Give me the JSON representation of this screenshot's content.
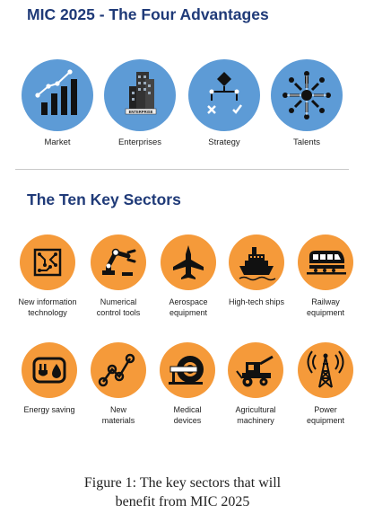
{
  "header": {
    "title": "MIC 2025 - The Four Advantages",
    "sectors_title": "The Ten Key Sectors"
  },
  "advantages": [
    {
      "label": "Market",
      "icon": "bar-chart-icon"
    },
    {
      "label": "Enterprises",
      "icon": "building-icon",
      "badge": "ENTERPRISE"
    },
    {
      "label": "Strategy",
      "icon": "flowchart-icon"
    },
    {
      "label": "Talents",
      "icon": "people-network-icon"
    }
  ],
  "sectors": [
    {
      "label_lines": [
        "New information",
        "technology"
      ],
      "icon": "circuit-board-icon"
    },
    {
      "label_lines": [
        "Numerical",
        "control tools"
      ],
      "icon": "robotic-arm-icon"
    },
    {
      "label_lines": [
        "Aerospace",
        "equipment"
      ],
      "icon": "jet-icon"
    },
    {
      "label_lines": [
        "High-tech ships",
        ""
      ],
      "icon": "ship-icon"
    },
    {
      "label_lines": [
        "Railway",
        "equipment"
      ],
      "icon": "train-icon"
    },
    {
      "label_lines": [
        "Energy saving",
        ""
      ],
      "icon": "plug-drop-icon"
    },
    {
      "label_lines": [
        "New",
        "materials"
      ],
      "icon": "molecule-icon"
    },
    {
      "label_lines": [
        "Medical",
        "devices"
      ],
      "icon": "mri-scanner-icon"
    },
    {
      "label_lines": [
        "Agricultural",
        "machinery"
      ],
      "icon": "harvester-icon"
    },
    {
      "label_lines": [
        "Power",
        "equipment"
      ],
      "icon": "transmission-tower-icon"
    }
  ],
  "caption": {
    "line1": "Figure 1: The key sectors that will",
    "line2": "benefit from MIC 2025"
  },
  "colors": {
    "title": "#1f3a78",
    "advantage_circle": "#5d9bd6",
    "sector_circle": "#f59a3a",
    "icon": "#111111"
  }
}
